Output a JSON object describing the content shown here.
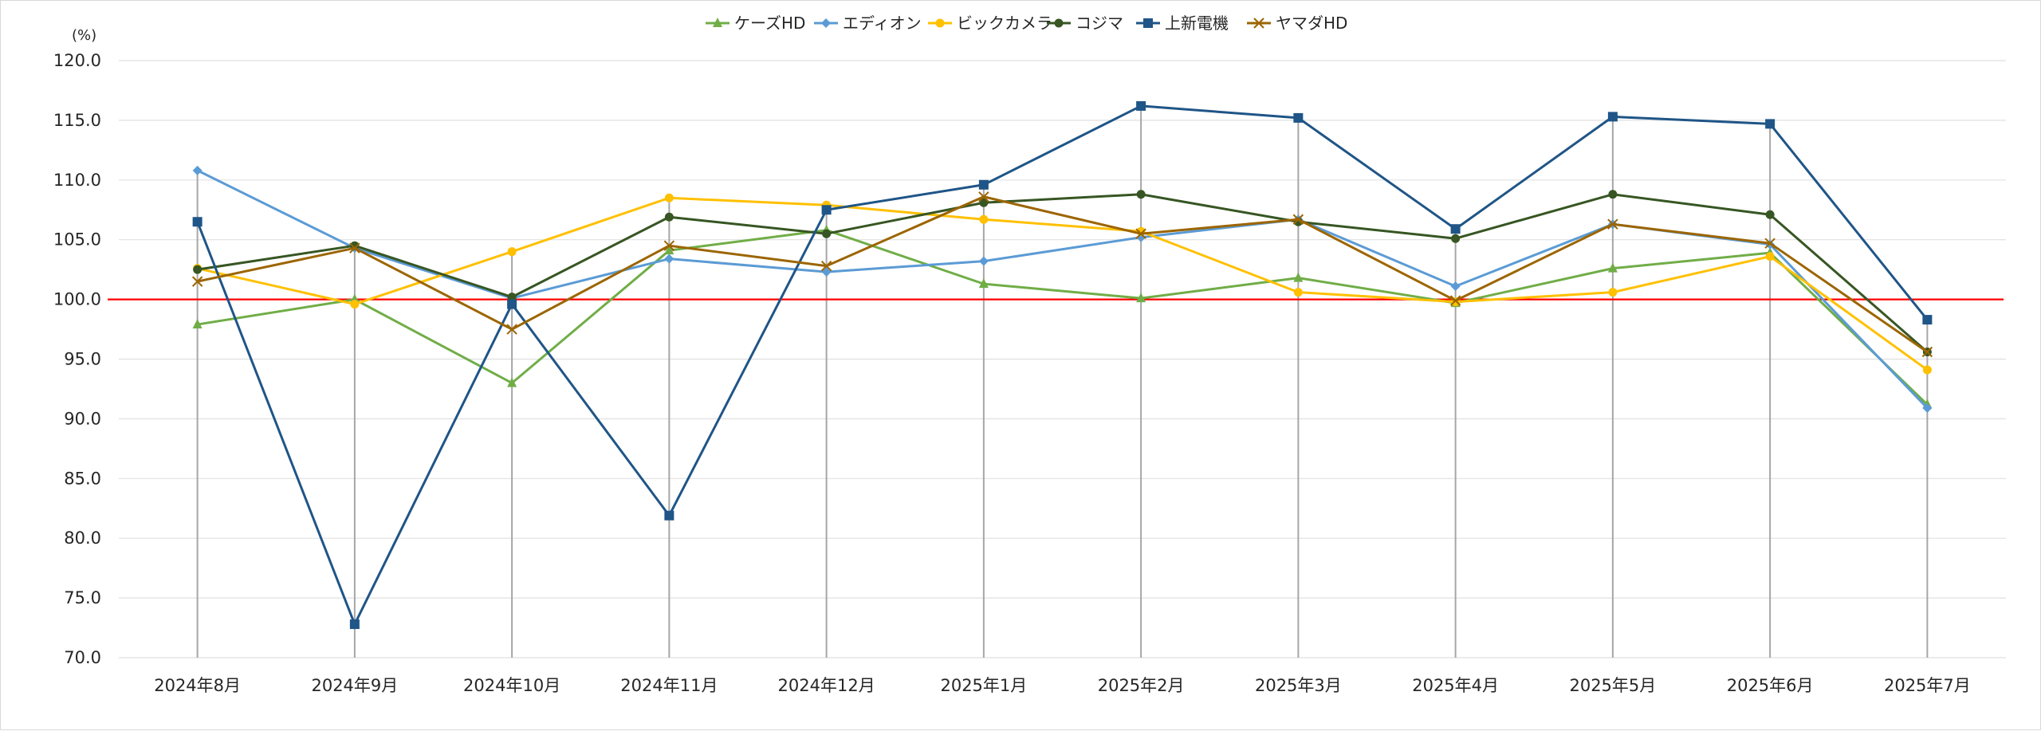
{
  "chart_data": {
    "type": "line",
    "y_unit": "(%)",
    "ylim": [
      70,
      120
    ],
    "y_tick_step": 5,
    "y_ticks": [
      "70.0",
      "75.0",
      "80.0",
      "85.0",
      "90.0",
      "95.0",
      "100.0",
      "105.0",
      "110.0",
      "115.0",
      "120.0"
    ],
    "grid": true,
    "legend_position": "top",
    "reference_line": {
      "value": 100,
      "color": "#ff0000"
    },
    "categories": [
      "2024年8月",
      "2024年9月",
      "2024年10月",
      "2024年11月",
      "2024年12月",
      "2025年1月",
      "2025年2月",
      "2025年3月",
      "2025年4月",
      "2025年5月",
      "2025年6月",
      "2025年7月"
    ],
    "series": [
      {
        "name": "ケーズHD",
        "color": "#70ad47",
        "marker": "triangle",
        "values": [
          97.9,
          100.0,
          93.0,
          104.1,
          105.8,
          101.3,
          100.1,
          101.8,
          99.7,
          102.6,
          103.9,
          91.2
        ]
      },
      {
        "name": "エディオン",
        "color": "#5b9bd5",
        "marker": "diamond",
        "values": [
          110.8,
          104.3,
          100.1,
          103.4,
          102.3,
          103.2,
          105.2,
          106.7,
          101.1,
          106.3,
          104.6,
          90.9
        ]
      },
      {
        "name": "ビックカメラ",
        "color": "#ffc000",
        "marker": "circle",
        "values": [
          102.6,
          99.6,
          104.0,
          108.5,
          107.9,
          106.7,
          105.7,
          100.6,
          99.8,
          100.6,
          103.6,
          94.1
        ]
      },
      {
        "name": "コジマ",
        "color": "#375623",
        "marker": "circle",
        "values": [
          102.5,
          104.5,
          100.2,
          106.9,
          105.5,
          108.1,
          108.8,
          106.5,
          105.1,
          108.8,
          107.1,
          95.6
        ]
      },
      {
        "name": "上新電機",
        "color": "#1f5587",
        "marker": "square",
        "values": [
          106.5,
          72.8,
          99.6,
          81.9,
          107.5,
          109.6,
          116.2,
          115.2,
          105.9,
          115.3,
          114.7,
          98.3
        ]
      },
      {
        "name": "ヤマダHD",
        "color": "#9c6500",
        "marker": "x",
        "values": [
          101.5,
          104.3,
          97.5,
          104.5,
          102.8,
          108.6,
          105.5,
          106.7,
          99.9,
          106.3,
          104.7,
          95.6
        ]
      }
    ]
  }
}
